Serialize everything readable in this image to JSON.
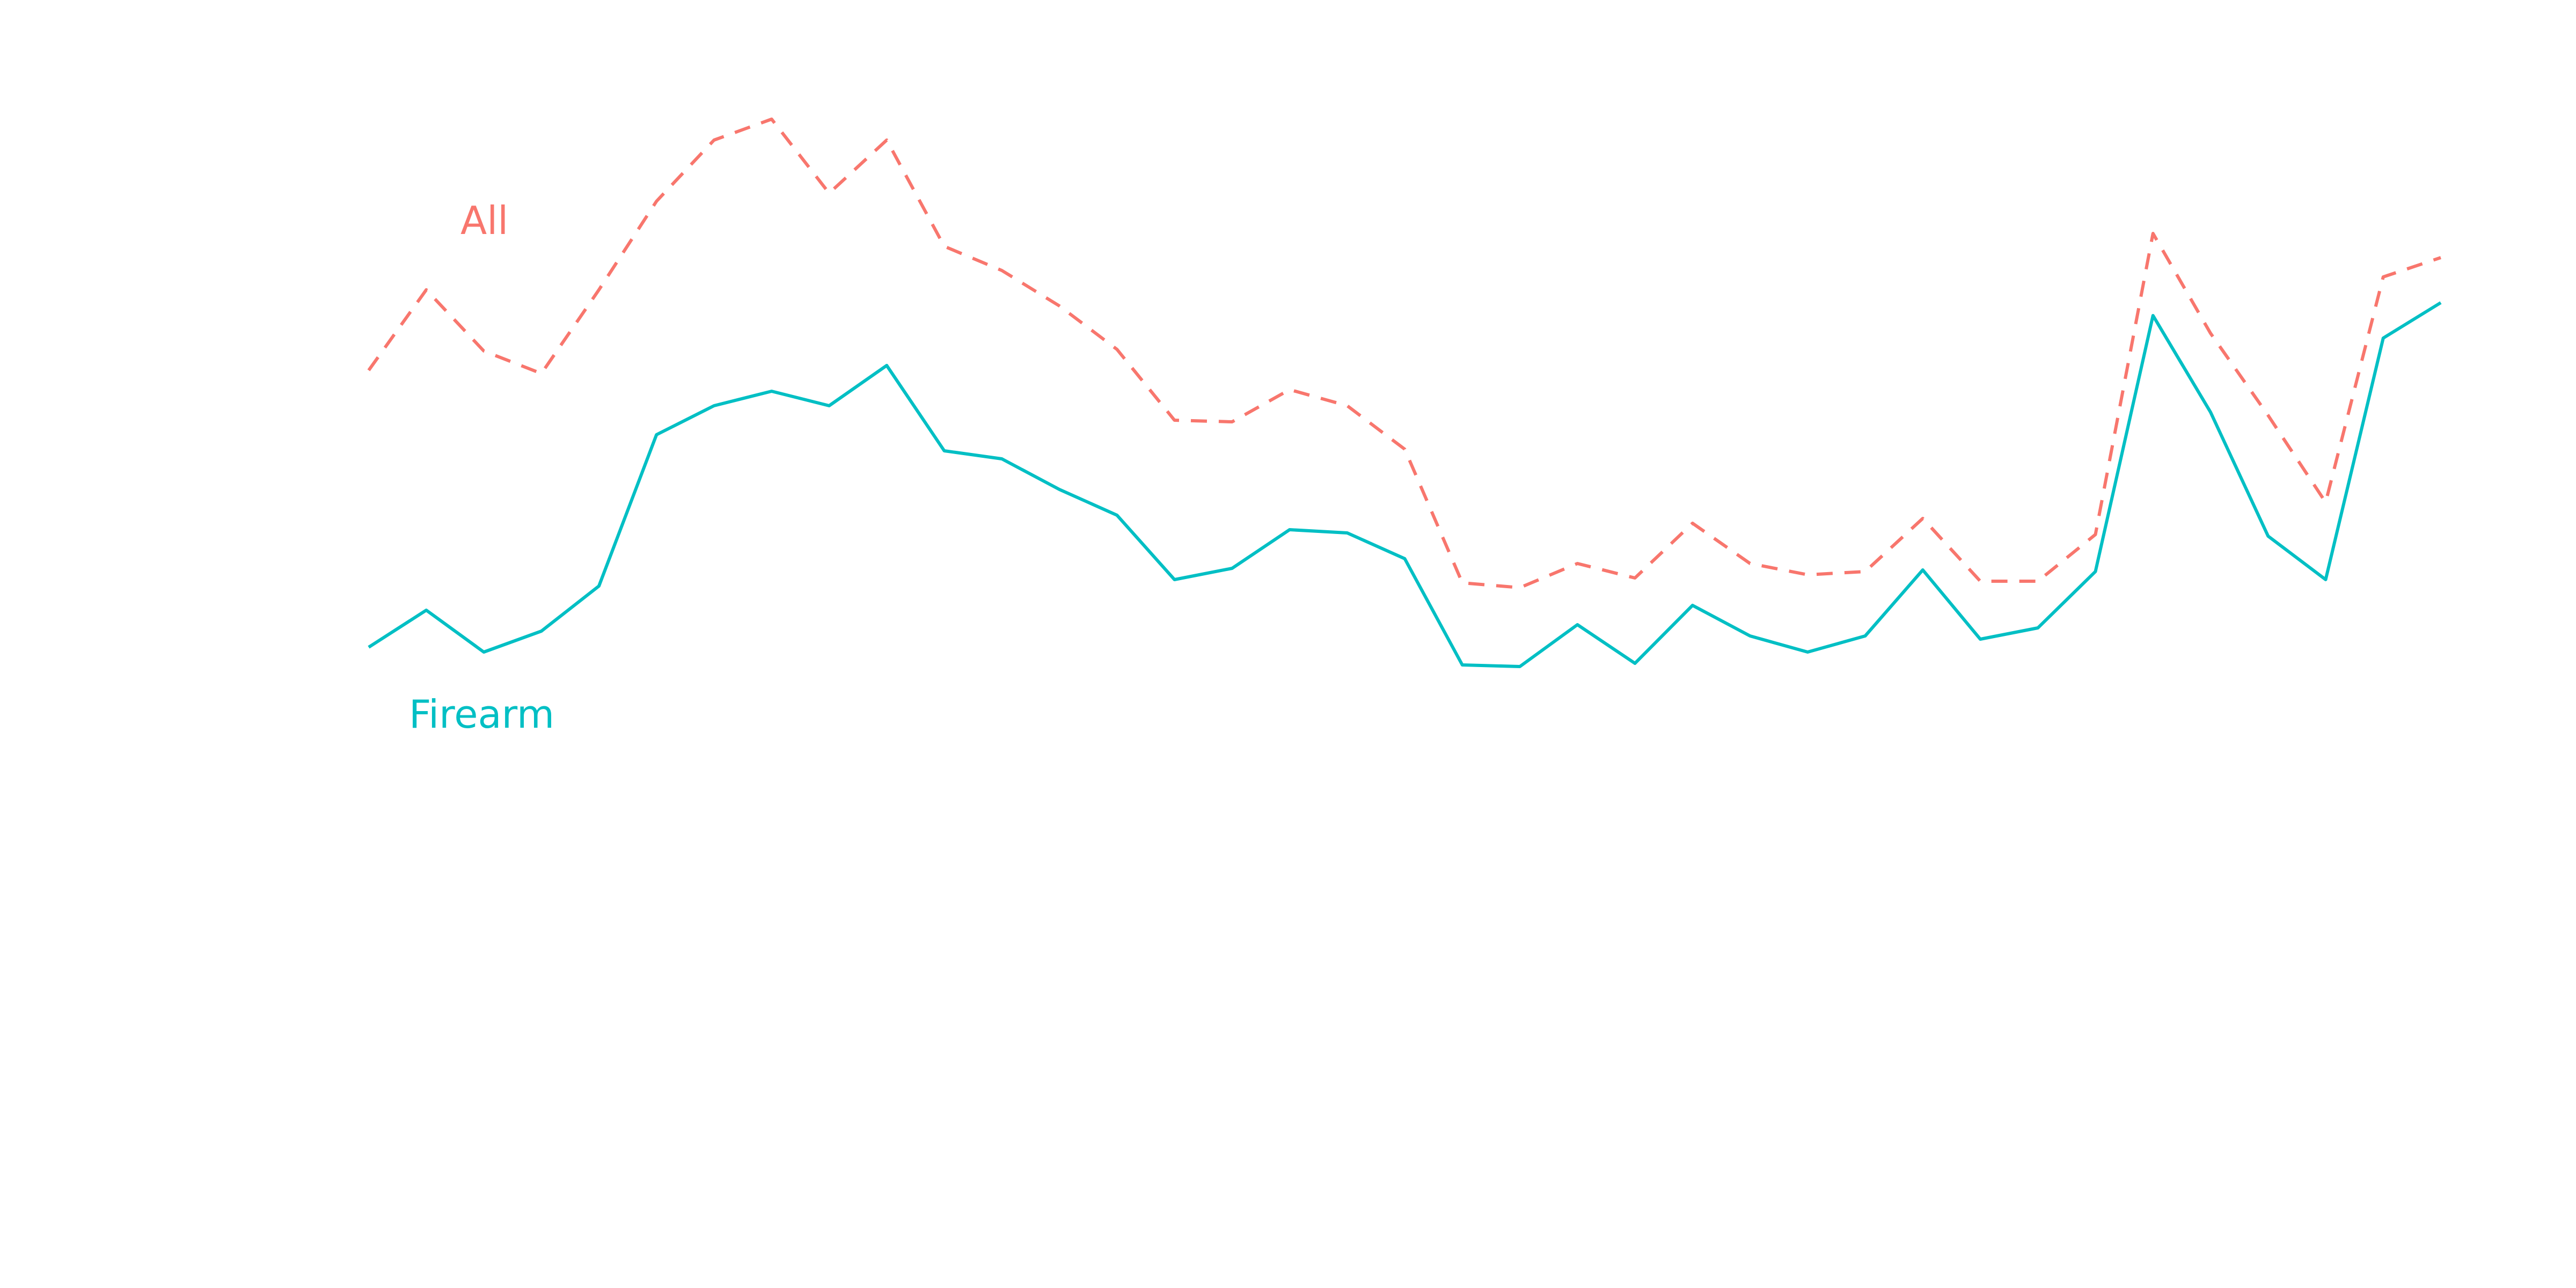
{
  "chart_data": {
    "type": "line",
    "x": [
      1,
      2,
      3,
      4,
      5,
      6,
      7,
      8,
      9,
      10,
      11,
      12,
      13,
      14,
      15,
      16,
      17,
      18,
      19,
      20,
      21,
      22,
      23,
      24,
      25,
      26,
      27,
      28,
      29,
      30,
      31,
      32,
      33,
      34,
      35,
      36,
      37
    ],
    "ylim": [
      0,
      800
    ],
    "grid": false,
    "series": [
      {
        "name": "All",
        "color": "#F8766D",
        "dash": "dashed",
        "values": [
          570,
          620,
          582,
          568,
          620,
          675,
          713,
          726,
          680,
          713,
          647,
          632,
          610,
          583,
          539,
          538,
          558,
          548,
          521,
          438,
          435,
          450,
          441,
          475,
          450,
          443,
          445,
          478,
          439,
          439,
          468,
          655,
          593,
          542,
          488,
          628,
          640
        ]
      },
      {
        "name": "Firearm",
        "color": "#00BFC4",
        "dash": "solid",
        "values": [
          398,
          421,
          395,
          408,
          436,
          530,
          548,
          557,
          548,
          573,
          520,
          515,
          496,
          480,
          440,
          447,
          471,
          469,
          453,
          387,
          386,
          412,
          388,
          424,
          405,
          395,
          405,
          446,
          403,
          410,
          445,
          604,
          544,
          467,
          440,
          590,
          612
        ]
      }
    ]
  }
}
